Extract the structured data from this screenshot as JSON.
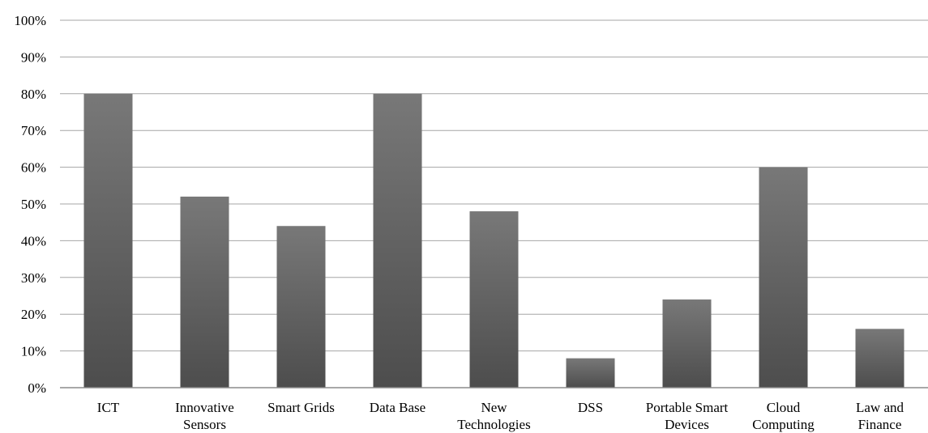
{
  "chart_data": {
    "type": "bar",
    "categories": [
      [
        "ICT"
      ],
      [
        "Innovative",
        "Sensors"
      ],
      [
        "Smart Grids"
      ],
      [
        "Data Base"
      ],
      [
        "New",
        "Technologies"
      ],
      [
        "DSS"
      ],
      [
        "Portable Smart",
        "Devices"
      ],
      [
        "Cloud",
        "Computing"
      ],
      [
        "Law and",
        "Finance"
      ]
    ],
    "values": [
      80,
      52,
      44,
      80,
      48,
      8,
      24,
      60,
      16
    ],
    "title": "",
    "xlabel": "",
    "ylabel": "",
    "ylim": [
      0,
      100
    ],
    "y_ticks": [
      "0%",
      "10%",
      "20%",
      "30%",
      "40%",
      "50%",
      "60%",
      "70%",
      "80%",
      "90%",
      "100%"
    ],
    "grid": true,
    "legend": "none",
    "colors": {
      "bar_top": "#787878",
      "bar_bottom": "#4d4d4d",
      "grid": "#a6a6a6",
      "axis": "#8c8c8c",
      "text": "#000000"
    }
  }
}
